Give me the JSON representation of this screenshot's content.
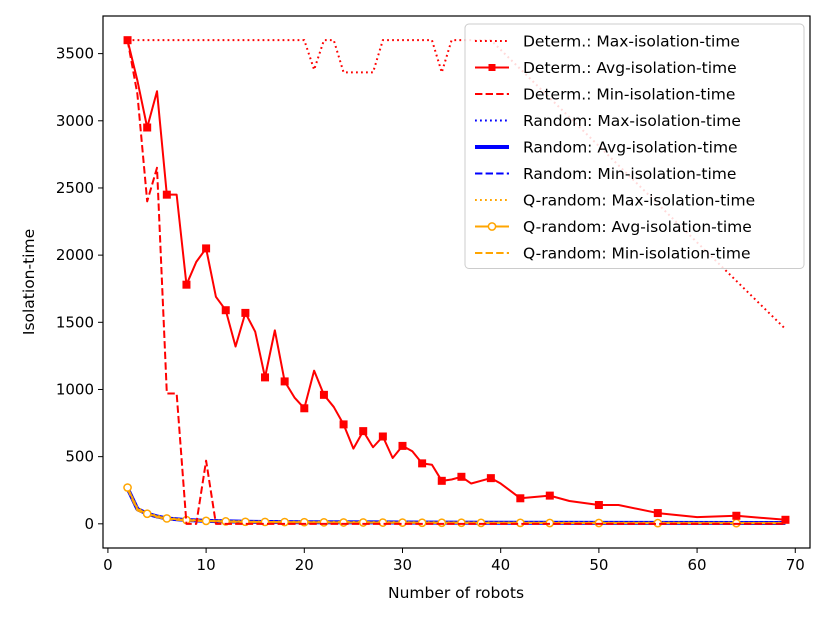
{
  "chart_data": {
    "type": "line",
    "title": "",
    "xlabel": "Number of robots",
    "ylabel": "Isolation-time",
    "xlim": [
      -0.5,
      71.5
    ],
    "ylim": [
      -180,
      3780
    ],
    "xticks": [
      0,
      10,
      20,
      30,
      40,
      50,
      60,
      70
    ],
    "yticks": [
      0,
      500,
      1000,
      1500,
      2000,
      2500,
      3000,
      3500
    ],
    "grid": false,
    "legend_position": "top-right",
    "series": [
      {
        "name": "Determ.: Max-isolation-time",
        "color": "#ff0000",
        "style": "dotted",
        "width": 2,
        "marker": "none",
        "x": [
          2,
          20,
          21,
          22,
          23,
          24,
          25,
          26,
          27,
          28,
          33,
          34,
          35,
          39,
          69
        ],
        "y": [
          3600,
          3600,
          3380,
          3600,
          3600,
          3360,
          3360,
          3360,
          3360,
          3600,
          3600,
          3360,
          3600,
          3600,
          1450
        ]
      },
      {
        "name": "Determ.: Avg-isolation-time",
        "color": "#ff0000",
        "style": "solid",
        "width": 2,
        "marker": "square",
        "x": [
          2,
          3,
          4,
          5,
          6,
          7,
          8,
          9,
          10,
          11,
          12,
          13,
          14,
          15,
          16,
          17,
          18,
          19,
          20,
          21,
          22,
          23,
          24,
          25,
          26,
          27,
          28,
          29,
          30,
          31,
          32,
          33,
          34,
          35,
          36,
          37,
          38,
          39,
          40,
          42,
          45,
          47,
          50,
          52,
          56,
          60,
          64,
          69
        ],
        "y": [
          3600,
          3300,
          2950,
          3220,
          2450,
          2450,
          1780,
          1950,
          2050,
          1690,
          1590,
          1320,
          1570,
          1430,
          1090,
          1440,
          1060,
          940,
          860,
          1140,
          960,
          870,
          740,
          560,
          690,
          570,
          650,
          490,
          580,
          540,
          450,
          440,
          320,
          330,
          350,
          300,
          320,
          340,
          300,
          190,
          210,
          170,
          140,
          140,
          80,
          50,
          60,
          30
        ],
        "marked_x": [
          2,
          4,
          6,
          8,
          10,
          12,
          14,
          16,
          18,
          20,
          22,
          24,
          26,
          28,
          30,
          32,
          34,
          36,
          39,
          42,
          45,
          50,
          56,
          64,
          69
        ]
      },
      {
        "name": "Determ.: Min-isolation-time",
        "color": "#ff0000",
        "style": "dashed",
        "width": 2,
        "marker": "none",
        "x": [
          2,
          3,
          4,
          5,
          6,
          7,
          8,
          9,
          10,
          11,
          12,
          69
        ],
        "y": [
          3600,
          3200,
          2400,
          2650,
          970,
          970,
          0,
          0,
          470,
          0,
          0,
          0
        ]
      },
      {
        "name": "Random: Max-isolation-time",
        "color": "#0000ff",
        "style": "dotted",
        "width": 2,
        "marker": "none",
        "x": [
          2,
          3,
          4,
          5,
          6,
          8,
          10,
          14,
          20,
          30,
          40,
          69
        ],
        "y": [
          270,
          120,
          80,
          60,
          45,
          30,
          25,
          18,
          15,
          12,
          10,
          8
        ]
      },
      {
        "name": "Random: Avg-isolation-time",
        "color": "#0000ff",
        "style": "solid",
        "width": 4,
        "marker": "none",
        "x": [
          2,
          3,
          4,
          5,
          6,
          8,
          10,
          14,
          20,
          30,
          40,
          69
        ],
        "y": [
          265,
          110,
          75,
          55,
          40,
          28,
          22,
          15,
          12,
          10,
          8,
          6
        ]
      },
      {
        "name": "Random: Min-isolation-time",
        "color": "#0000ff",
        "style": "dashed",
        "width": 2,
        "marker": "none",
        "x": [
          2,
          3,
          4,
          5,
          6,
          8,
          10,
          14,
          20,
          30,
          40,
          69
        ],
        "y": [
          260,
          100,
          70,
          50,
          35,
          25,
          20,
          12,
          10,
          8,
          6,
          4
        ]
      },
      {
        "name": "Q-random: Max-isolation-time",
        "color": "#ffa500",
        "style": "dotted",
        "width": 2,
        "marker": "none",
        "x": [
          2,
          3,
          4,
          5,
          6,
          8,
          10,
          14,
          20,
          30,
          40,
          69
        ],
        "y": [
          270,
          120,
          80,
          60,
          45,
          30,
          25,
          18,
          15,
          12,
          10,
          8
        ]
      },
      {
        "name": "Q-random: Avg-isolation-time",
        "color": "#ffa500",
        "style": "solid",
        "width": 2,
        "marker": "circle",
        "x": [
          2,
          3,
          4,
          5,
          6,
          8,
          10,
          12,
          14,
          16,
          18,
          20,
          22,
          24,
          26,
          28,
          30,
          32,
          34,
          36,
          38,
          42,
          45,
          50,
          56,
          64,
          69
        ],
        "y": [
          270,
          110,
          75,
          55,
          40,
          28,
          22,
          18,
          15,
          14,
          13,
          12,
          11,
          10,
          10,
          9,
          9,
          8,
          8,
          8,
          7,
          7,
          6,
          6,
          5,
          5,
          5
        ],
        "marked_x": [
          2,
          4,
          6,
          8,
          10,
          12,
          14,
          16,
          18,
          20,
          22,
          24,
          26,
          28,
          30,
          32,
          34,
          36,
          38,
          42,
          45,
          50,
          56,
          64
        ]
      },
      {
        "name": "Q-random: Min-isolation-time",
        "color": "#ffa500",
        "style": "dashed",
        "width": 2,
        "marker": "none",
        "x": [
          2,
          3,
          4,
          5,
          6,
          8,
          10,
          14,
          20,
          30,
          40,
          69
        ],
        "y": [
          260,
          100,
          70,
          50,
          35,
          25,
          20,
          12,
          10,
          8,
          6,
          4
        ]
      }
    ]
  }
}
